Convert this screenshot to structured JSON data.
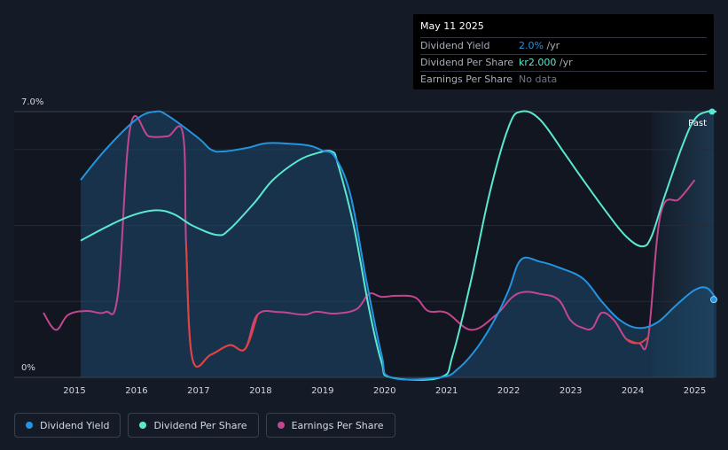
{
  "tooltip": {
    "date": "May 11 2025",
    "rows": [
      {
        "label": "Dividend Yield",
        "value": "2.0%",
        "unit": " /yr",
        "color": "#2394df"
      },
      {
        "label": "Dividend Per Share",
        "value": "kr2.000",
        "unit": " /yr",
        "color": "#5ae8d1"
      },
      {
        "label": "Earnings Per Share",
        "value": "No data",
        "unit": "",
        "color": "#6e7480"
      }
    ]
  },
  "legend": [
    {
      "label": "Dividend Yield",
      "color": "#2394df"
    },
    {
      "label": "Dividend Per Share",
      "color": "#5ae8d1"
    },
    {
      "label": "Earnings Per Share",
      "color": "#c2478f"
    }
  ],
  "chart_data": {
    "type": "line",
    "ylim": [
      0,
      7.0
    ],
    "y_tick_labels": [
      "7.0%",
      "0%"
    ],
    "x_tick_labels": [
      "2015",
      "2016",
      "2017",
      "2018",
      "2019",
      "2020",
      "2021",
      "2022",
      "2023",
      "2024",
      "2025"
    ],
    "past_label": "Past",
    "xlim": [
      2014.5,
      2025.35
    ],
    "series": [
      {
        "name": "Dividend Yield",
        "color": "#2394df",
        "points": [
          [
            2015.1,
            5.2
          ],
          [
            2015.5,
            6.0
          ],
          [
            2016.0,
            6.8
          ],
          [
            2016.3,
            7.0
          ],
          [
            2016.5,
            6.9
          ],
          [
            2017.0,
            6.3
          ],
          [
            2017.2,
            6.0
          ],
          [
            2017.4,
            5.95
          ],
          [
            2017.8,
            6.05
          ],
          [
            2018.1,
            6.17
          ],
          [
            2018.5,
            6.15
          ],
          [
            2018.8,
            6.1
          ],
          [
            2019.0,
            5.97
          ],
          [
            2019.2,
            5.8
          ],
          [
            2019.45,
            4.8
          ],
          [
            2019.7,
            2.6
          ],
          [
            2019.95,
            0.6
          ],
          [
            2020.1,
            0.0
          ],
          [
            2020.9,
            0.0
          ],
          [
            2021.2,
            0.25
          ],
          [
            2021.5,
            0.8
          ],
          [
            2021.8,
            1.6
          ],
          [
            2022.0,
            2.3
          ],
          [
            2022.2,
            3.1
          ],
          [
            2022.5,
            3.05
          ],
          [
            2022.8,
            2.9
          ],
          [
            2023.2,
            2.6
          ],
          [
            2023.5,
            2.0
          ],
          [
            2023.8,
            1.5
          ],
          [
            2024.1,
            1.3
          ],
          [
            2024.4,
            1.45
          ],
          [
            2024.7,
            1.9
          ],
          [
            2025.0,
            2.3
          ],
          [
            2025.2,
            2.35
          ],
          [
            2025.35,
            2.05
          ]
        ]
      },
      {
        "name": "Dividend Per Share",
        "color": "#5ae8d1",
        "points": [
          [
            2015.1,
            3.6
          ],
          [
            2015.5,
            3.95
          ],
          [
            2015.9,
            4.25
          ],
          [
            2016.3,
            4.4
          ],
          [
            2016.6,
            4.3
          ],
          [
            2016.9,
            4.0
          ],
          [
            2017.3,
            3.75
          ],
          [
            2017.5,
            3.9
          ],
          [
            2017.9,
            4.6
          ],
          [
            2018.2,
            5.2
          ],
          [
            2018.6,
            5.7
          ],
          [
            2018.9,
            5.9
          ],
          [
            2019.15,
            5.95
          ],
          [
            2019.25,
            5.6
          ],
          [
            2019.5,
            4.0
          ],
          [
            2019.75,
            1.8
          ],
          [
            2019.95,
            0.4
          ],
          [
            2020.1,
            0.0
          ],
          [
            2020.9,
            0.0
          ],
          [
            2021.1,
            0.6
          ],
          [
            2021.4,
            2.6
          ],
          [
            2021.7,
            4.9
          ],
          [
            2022.0,
            6.6
          ],
          [
            2022.2,
            7.0
          ],
          [
            2022.5,
            6.8
          ],
          [
            2022.9,
            5.9
          ],
          [
            2023.2,
            5.2
          ],
          [
            2023.6,
            4.3
          ],
          [
            2023.9,
            3.7
          ],
          [
            2024.15,
            3.45
          ],
          [
            2024.3,
            3.7
          ],
          [
            2024.5,
            4.7
          ],
          [
            2024.8,
            6.1
          ],
          [
            2025.0,
            6.8
          ],
          [
            2025.2,
            7.0
          ],
          [
            2025.35,
            7.0
          ]
        ]
      },
      {
        "name": "Earnings Per Share",
        "color": "#c2478f",
        "points": [
          [
            2014.5,
            1.7
          ],
          [
            2014.7,
            1.25
          ],
          [
            2014.9,
            1.65
          ],
          [
            2015.2,
            1.75
          ],
          [
            2015.5,
            1.72
          ],
          [
            2015.7,
            2.2
          ],
          [
            2015.9,
            6.6
          ],
          [
            2016.2,
            6.35
          ],
          [
            2016.5,
            6.35
          ],
          [
            2016.75,
            6.4
          ],
          [
            2016.8,
            3.5
          ],
          [
            2016.9,
            0.5
          ],
          [
            2017.2,
            0.6
          ],
          [
            2017.5,
            0.85
          ],
          [
            2017.75,
            0.75
          ],
          [
            2017.95,
            1.65
          ],
          [
            2018.3,
            1.72
          ],
          [
            2018.7,
            1.65
          ],
          [
            2018.9,
            1.73
          ],
          [
            2019.2,
            1.68
          ],
          [
            2019.55,
            1.8
          ],
          [
            2019.75,
            2.2
          ],
          [
            2019.95,
            2.12
          ],
          [
            2020.2,
            2.15
          ],
          [
            2020.5,
            2.1
          ],
          [
            2020.7,
            1.75
          ],
          [
            2021.0,
            1.7
          ],
          [
            2021.4,
            1.25
          ],
          [
            2021.8,
            1.65
          ],
          [
            2022.05,
            2.1
          ],
          [
            2022.25,
            2.25
          ],
          [
            2022.5,
            2.2
          ],
          [
            2022.8,
            2.05
          ],
          [
            2023.0,
            1.5
          ],
          [
            2023.2,
            1.3
          ],
          [
            2023.35,
            1.3
          ],
          [
            2023.5,
            1.7
          ],
          [
            2023.7,
            1.5
          ],
          [
            2023.9,
            1.0
          ],
          [
            2024.1,
            0.9
          ],
          [
            2024.25,
            1.05
          ],
          [
            2024.45,
            4.3
          ],
          [
            2024.75,
            4.7
          ],
          [
            2025.0,
            5.2
          ]
        ]
      }
    ]
  }
}
